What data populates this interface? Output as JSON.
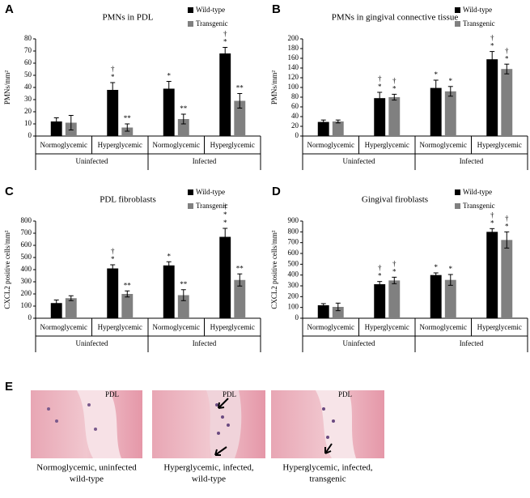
{
  "chart_data": [
    {
      "type": "bar",
      "panel": "A",
      "title": "PMNs in PDL",
      "ylabel": "PMNs/mm²",
      "legend": "upper right",
      "categories": [
        "Normoglycemic",
        "Hyperglycemic",
        "Normoglycemic",
        "Hyperglycemic"
      ],
      "groups": [
        "Uninfected",
        "Infected"
      ],
      "ylim": [
        0,
        80
      ],
      "yticks": [
        0,
        10,
        20,
        30,
        40,
        50,
        60,
        70,
        80
      ],
      "series": [
        {
          "name": "Wild-type",
          "color": "#000000",
          "values": [
            12,
            38,
            39,
            68
          ],
          "errors": [
            3,
            6,
            6,
            5
          ],
          "markers": [
            null,
            [
              "*",
              "†"
            ],
            [
              "*"
            ],
            [
              "*",
              "†"
            ]
          ]
        },
        {
          "name": "Transgenic",
          "color": "#808080",
          "values": [
            11,
            7,
            14,
            29
          ],
          "errors": [
            6,
            3,
            4,
            6
          ],
          "markers": [
            null,
            [
              "**"
            ],
            [
              "**"
            ],
            [
              "**"
            ]
          ]
        }
      ]
    },
    {
      "type": "bar",
      "panel": "B",
      "title": "PMNs in gingival connective tissue",
      "ylabel": "PMNs/mm²",
      "legend": "upper right",
      "categories": [
        "Normoglycemic",
        "Hyperglycemic",
        "Normoglycemic",
        "Hyperglycemic"
      ],
      "groups": [
        "Uninfected",
        "Infected"
      ],
      "ylim": [
        0,
        200
      ],
      "yticks": [
        0,
        20,
        40,
        60,
        80,
        100,
        120,
        140,
        160,
        180,
        200
      ],
      "series": [
        {
          "name": "Wild-type",
          "color": "#000000",
          "values": [
            29,
            78,
            99,
            158
          ],
          "errors": [
            4,
            12,
            16,
            16
          ],
          "markers": [
            null,
            [
              "*",
              "†"
            ],
            [
              "*"
            ],
            [
              "*",
              "†"
            ]
          ]
        },
        {
          "name": "Transgenic",
          "color": "#808080",
          "values": [
            30,
            80,
            92,
            138
          ],
          "errors": [
            3,
            6,
            10,
            10
          ],
          "markers": [
            null,
            [
              "*",
              "†"
            ],
            [
              "*"
            ],
            [
              "*",
              "†"
            ]
          ]
        }
      ]
    },
    {
      "type": "bar",
      "panel": "C",
      "title": "PDL fibroblasts",
      "ylabel": "CXCL2 positive cells/mm²",
      "legend": "upper right",
      "categories": [
        "Normoglycemic",
        "Hyperglycemic",
        "Normoglycemic",
        "Hyperglycemic"
      ],
      "groups": [
        "Uninfected",
        "Infected"
      ],
      "ylim": [
        0,
        800
      ],
      "yticks": [
        0,
        100,
        200,
        300,
        400,
        500,
        600,
        700,
        800
      ],
      "series": [
        {
          "name": "Wild-type",
          "color": "#000000",
          "values": [
            125,
            410,
            435,
            670
          ],
          "errors": [
            25,
            30,
            30,
            70
          ],
          "markers": [
            null,
            [
              "*",
              "†"
            ],
            [
              "*"
            ],
            [
              "*",
              "*",
              "†"
            ]
          ]
        },
        {
          "name": "Transgenic",
          "color": "#808080",
          "values": [
            165,
            200,
            190,
            315
          ],
          "errors": [
            20,
            25,
            45,
            50
          ],
          "markers": [
            null,
            [
              "**"
            ],
            [
              "**"
            ],
            [
              "**"
            ]
          ]
        }
      ]
    },
    {
      "type": "bar",
      "panel": "D",
      "title": "Gingival firoblasts",
      "ylabel": "CXCL2 positive cells/mm²",
      "legend": "upper right",
      "categories": [
        "Normoglycemic",
        "Hyperglycemic",
        "Normoglycemic",
        "Hyperglycemic"
      ],
      "groups": [
        "Uninfected",
        "Infected"
      ],
      "ylim": [
        0,
        900
      ],
      "yticks": [
        0,
        100,
        200,
        300,
        400,
        500,
        600,
        700,
        800,
        900
      ],
      "series": [
        {
          "name": "Wild-type",
          "color": "#000000",
          "values": [
            120,
            315,
            400,
            800
          ],
          "errors": [
            15,
            25,
            20,
            30
          ],
          "markers": [
            null,
            [
              "*",
              "†"
            ],
            [
              "*"
            ],
            [
              "*",
              "†"
            ]
          ]
        },
        {
          "name": "Transgenic",
          "color": "#808080",
          "values": [
            105,
            350,
            355,
            725
          ],
          "errors": [
            35,
            30,
            50,
            75
          ],
          "markers": [
            null,
            [
              "*",
              "†"
            ],
            [
              "*"
            ],
            [
              "*",
              "†"
            ]
          ]
        }
      ]
    }
  ],
  "panel_e": {
    "panel": "E",
    "images": [
      {
        "label": "PDL",
        "caption": [
          "Normoglycemic, uninfected",
          "wild-type"
        ]
      },
      {
        "label": "PDL",
        "caption": [
          "Hyperglycemic, infected,",
          "wild-type"
        ]
      },
      {
        "label": "PDL",
        "caption": [
          "Hyperglycemic, infected,",
          "transgenic"
        ]
      }
    ]
  }
}
